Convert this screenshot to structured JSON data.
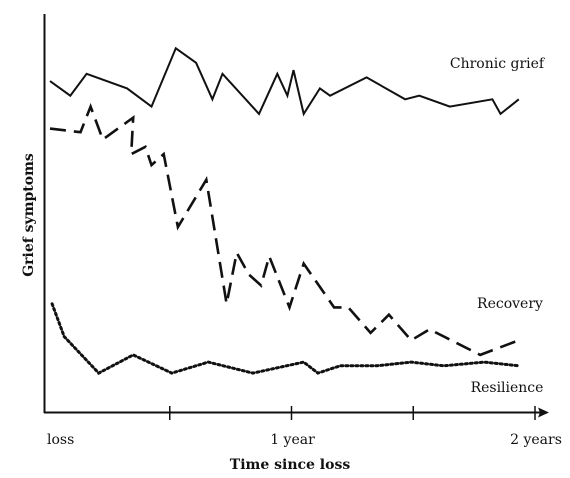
{
  "chart_data": {
    "type": "line",
    "title": "",
    "xlabel": "Time since loss",
    "ylabel": "Grief symptoms",
    "x_ticks": [
      {
        "x": 0,
        "label": "loss"
      },
      {
        "x": 6,
        "label": ""
      },
      {
        "x": 12,
        "label": "1 year"
      },
      {
        "x": 18,
        "label": ""
      },
      {
        "x": 24,
        "label": "2 years"
      }
    ],
    "xlim": [
      0,
      24
    ],
    "ylim": [
      0,
      100
    ],
    "grid": false,
    "legend": "direct labels at right end of each line",
    "series": [
      {
        "name": "Chronic grief",
        "dash": "solid",
        "points": [
          [
            0.1,
            86
          ],
          [
            1.1,
            82
          ],
          [
            1.9,
            88
          ],
          [
            3.9,
            84
          ],
          [
            5.1,
            79
          ],
          [
            6.3,
            95
          ],
          [
            7.3,
            91
          ],
          [
            8.1,
            81
          ],
          [
            8.6,
            88
          ],
          [
            10.4,
            77
          ],
          [
            11.3,
            88
          ],
          [
            11.8,
            82
          ],
          [
            12.1,
            89
          ],
          [
            12.6,
            77
          ],
          [
            13.4,
            84
          ],
          [
            13.9,
            82
          ],
          [
            15.7,
            87
          ],
          [
            17.6,
            81
          ],
          [
            18.3,
            82
          ],
          [
            19.8,
            79
          ],
          [
            21.9,
            81
          ],
          [
            22.3,
            77
          ],
          [
            23.2,
            81
          ]
        ]
      },
      {
        "name": "Recovery",
        "dash": "long-dash",
        "points": [
          [
            0.1,
            73
          ],
          [
            1.6,
            72
          ],
          [
            2.1,
            79
          ],
          [
            2.7,
            70
          ],
          [
            4.2,
            76
          ],
          [
            4.1,
            66
          ],
          [
            4.8,
            68
          ],
          [
            5.1,
            63
          ],
          [
            5.7,
            66
          ],
          [
            6.4,
            46
          ],
          [
            7.8,
            59
          ],
          [
            8.8,
            25
          ],
          [
            9.3,
            39
          ],
          [
            9.9,
            33
          ],
          [
            10.5,
            30
          ],
          [
            10.9,
            38
          ],
          [
            11.9,
            24
          ],
          [
            12.6,
            36
          ],
          [
            14.1,
            24
          ],
          [
            14.8,
            24
          ],
          [
            15.9,
            17
          ],
          [
            16.8,
            22
          ],
          [
            17.9,
            15
          ],
          [
            18.8,
            18
          ],
          [
            21.3,
            11
          ],
          [
            23.2,
            15
          ]
        ]
      },
      {
        "name": "Resilience",
        "dash": "dotted",
        "points": [
          [
            0.2,
            25
          ],
          [
            0.8,
            16
          ],
          [
            2.5,
            6
          ],
          [
            4.2,
            11
          ],
          [
            6.1,
            6
          ],
          [
            7.9,
            9
          ],
          [
            10.1,
            6
          ],
          [
            12.6,
            9
          ],
          [
            13.3,
            6
          ],
          [
            14.4,
            8
          ],
          [
            16.2,
            8
          ],
          [
            17.9,
            9
          ],
          [
            19.5,
            8
          ],
          [
            21.5,
            9
          ],
          [
            23.2,
            8
          ]
        ]
      }
    ]
  }
}
